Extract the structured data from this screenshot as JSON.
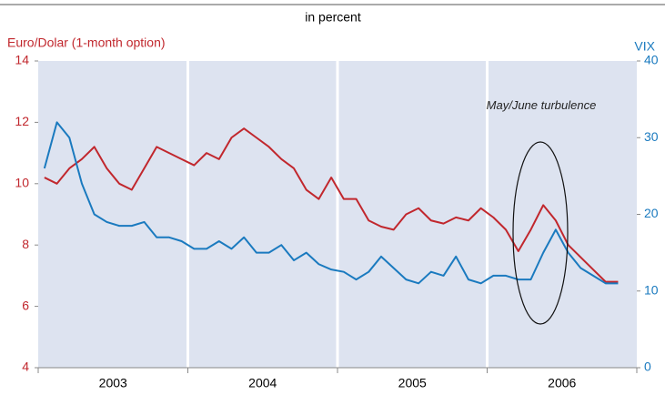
{
  "chart_data": {
    "type": "line",
    "title": "in percent",
    "y_label": "Euro/Dolar (1-month option)",
    "y2_label": "VIX",
    "annotation": "May/June turbulence",
    "categories": [
      null,
      null,
      null,
      null,
      null,
      null,
      "2003",
      null,
      null,
      null,
      null,
      null,
      null,
      null,
      null,
      null,
      null,
      null,
      "2004",
      null,
      null,
      null,
      null,
      null,
      null,
      null,
      null,
      null,
      null,
      null,
      "2005",
      null,
      null,
      null,
      null,
      null,
      null,
      null,
      null,
      null,
      null,
      null,
      "2006",
      null,
      null,
      null,
      null
    ],
    "series": [
      {
        "name": "Euro/Dolar (1-month option)",
        "color": "#c1272d",
        "axis": "y",
        "values": [
          10.2,
          10.0,
          10.5,
          10.8,
          11.2,
          10.5,
          10.0,
          9.8,
          10.5,
          11.2,
          11.0,
          10.8,
          10.6,
          11.0,
          10.8,
          11.5,
          11.8,
          11.5,
          11.2,
          10.8,
          10.5,
          9.8,
          9.5,
          10.2,
          9.5,
          9.5,
          8.8,
          8.6,
          8.5,
          9.0,
          9.2,
          8.8,
          8.7,
          8.9,
          8.8,
          9.2,
          8.9,
          8.5,
          7.8,
          8.5,
          9.3,
          8.8,
          8.0,
          7.6,
          7.2,
          6.8,
          6.8
        ]
      },
      {
        "name": "VIX",
        "color": "#1a7abf",
        "axis": "y2",
        "values": [
          26,
          32,
          30,
          24,
          20,
          19,
          18.5,
          18.5,
          19,
          17,
          17,
          16.5,
          15.5,
          15.5,
          16.5,
          15.5,
          17,
          15,
          15,
          16,
          14,
          15,
          13.5,
          12.8,
          12.5,
          11.5,
          12.5,
          14.5,
          13,
          11.5,
          11,
          12.5,
          12,
          14.5,
          11.5,
          11,
          12,
          12,
          11.5,
          11.5,
          15,
          18,
          15,
          13,
          12,
          11,
          11
        ]
      }
    ],
    "ylim": [
      4,
      14
    ],
    "yticks": [
      4,
      6,
      8,
      10,
      12,
      14
    ],
    "y2lim": [
      0,
      40
    ],
    "y2ticks": [
      0,
      10,
      20,
      30,
      40
    ]
  }
}
